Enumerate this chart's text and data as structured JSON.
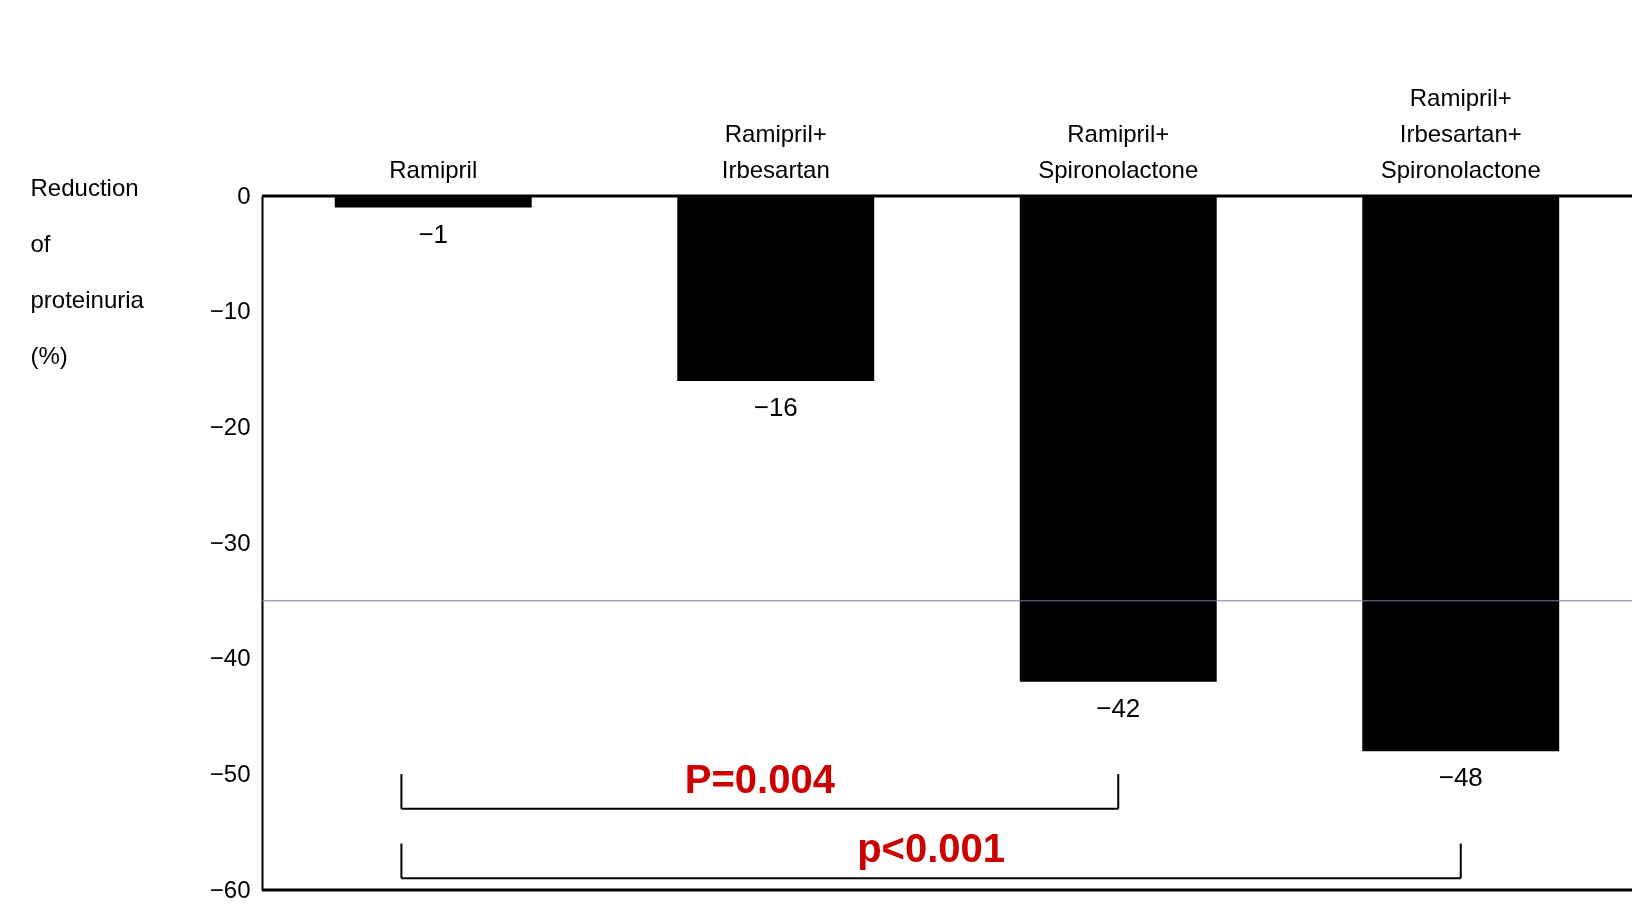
{
  "chart_data": {
    "type": "bar",
    "ylabel": "Reduction of proteinuria (%)",
    "categories": [
      "Ramipril",
      "Ramipril+ Irbesartan",
      "Ramipril+ Spironolactone",
      "Ramipril+ Irbesartan+ Spironolactone"
    ],
    "values": [
      -1,
      -16,
      -42,
      -48
    ],
    "color": "#000000",
    "ylim": [
      -60,
      0
    ],
    "yticks": [
      0,
      -10,
      -20,
      -30,
      -40,
      -50,
      -60
    ],
    "data_labels": true,
    "grid": false,
    "ref_lines": [
      {
        "axis": "y",
        "value": -35,
        "color": "#7a7aa8"
      }
    ],
    "annotations": [
      "P=0.004",
      "p<0.001"
    ]
  }
}
